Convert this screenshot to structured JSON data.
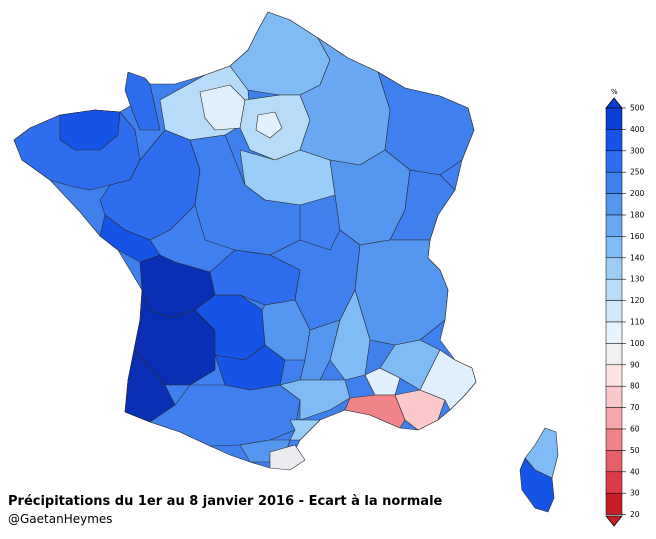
{
  "title": "Précipitations du 1er au 8 janvier 2016 - Ecart à la normale",
  "credit": "@GaetanHeymes",
  "legend": {
    "unit": "%",
    "ticks": [
      "500",
      "400",
      "300",
      "250",
      "200",
      "180",
      "160",
      "140",
      "130",
      "120",
      "110",
      "100",
      "90",
      "80",
      "70",
      "60",
      "50",
      "40",
      "30",
      "20"
    ],
    "colors": [
      "#0a3fd6",
      "#1654e8",
      "#2e6ded",
      "#3f80ee",
      "#5596f0",
      "#6aa8f3",
      "#80bbf5",
      "#9bcdf7",
      "#b6dcf9",
      "#d1eafb",
      "#e8f4fd",
      "#f0f0f0",
      "#fde4e4",
      "#fbc9cb",
      "#f6a7ab",
      "#f08489",
      "#e6606a",
      "#db3d47",
      "#c81e26"
    ]
  },
  "colors": {
    "very_dark_blue": "#0a2fb5",
    "dark_blue": "#1654e8",
    "blue": "#2e6ded",
    "medium_blue": "#3f80ee",
    "mid_blue": "#5596f0",
    "light_blue": "#80bbf5",
    "pale_blue": "#b6dcf9",
    "very_pale_blue": "#e0f1fd",
    "near_normal": "#ececf0",
    "light_red": "#fbc9cb",
    "red": "#f08489"
  }
}
